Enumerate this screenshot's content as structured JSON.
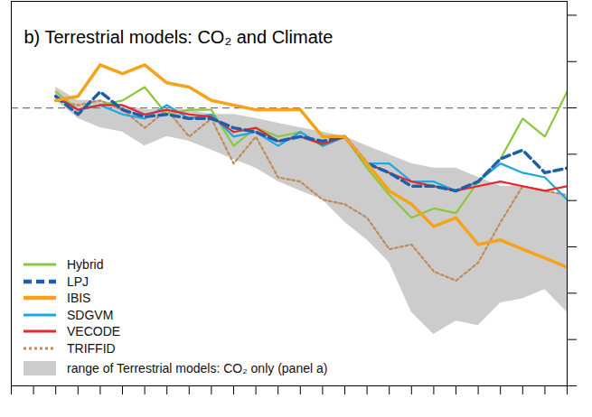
{
  "chart_data": {
    "type": "line",
    "title": "b) Terrestrial models: CO₂ and Climate",
    "x": [
      2,
      3,
      4,
      5,
      6,
      7,
      8,
      9,
      10,
      11,
      12,
      13,
      14,
      15,
      16,
      17,
      18,
      19,
      20,
      21,
      22,
      23,
      24,
      25
    ],
    "xlim": [
      0,
      25
    ],
    "xticks": [
      0,
      1,
      2,
      3,
      4,
      5,
      6,
      7,
      8,
      9,
      10,
      11,
      12,
      13,
      14,
      15,
      16,
      17,
      18,
      19,
      20,
      21,
      22,
      23,
      24,
      25
    ],
    "ylim": [
      -6,
      2.3
    ],
    "yticks": [
      -6,
      -5,
      -4,
      -3,
      -2,
      -1,
      0,
      1,
      2
    ],
    "tick_labels": false,
    "baseline": 0,
    "series": [
      {
        "name": "TRIFFID",
        "color": "#c08b5a",
        "line_style": "dotted",
        "values": [
          0.16,
          0.06,
          0.16,
          -0.04,
          -0.43,
          -0.04,
          -0.62,
          -0.23,
          -1.2,
          -0.62,
          -1.5,
          -1.59,
          -1.98,
          -2.08,
          -2.37,
          -3.05,
          -2.95,
          -3.53,
          -3.73,
          -3.34,
          -2.47,
          -1.69,
          -1.79,
          -1.88
        ]
      },
      {
        "name": "Hybrid",
        "color": "#8dc63f",
        "line_style": "solid",
        "values": [
          0.35,
          -0.04,
          0.06,
          0.16,
          0.45,
          -0.14,
          -0.04,
          -0.04,
          -0.82,
          -0.43,
          -0.62,
          -0.52,
          -0.82,
          -0.62,
          -1.3,
          -1.88,
          -2.37,
          -2.17,
          -2.27,
          -1.59,
          -1.1,
          -0.23,
          -0.62,
          0.35
        ]
      },
      {
        "name": "SDGVM",
        "color": "#1ea7e1",
        "line_style": "solid",
        "values": [
          0.25,
          -0.04,
          0.06,
          -0.14,
          -0.23,
          0.06,
          -0.23,
          -0.14,
          -0.62,
          -0.52,
          -0.82,
          -0.52,
          -0.82,
          -0.62,
          -1.2,
          -1.2,
          -1.59,
          -1.59,
          -1.79,
          -1.59,
          -1.2,
          -1.4,
          -1.5,
          -1.98
        ]
      },
      {
        "name": "VECODE",
        "color": "#e8262b",
        "line_style": "solid",
        "values": [
          0.25,
          -0.04,
          0.06,
          0.06,
          -0.14,
          -0.04,
          -0.14,
          -0.19,
          -0.52,
          -0.43,
          -0.72,
          -0.62,
          -0.78,
          -0.62,
          -1.2,
          -1.4,
          -1.59,
          -1.69,
          -1.79,
          -1.69,
          -1.59,
          -1.69,
          -1.79,
          -1.69
        ]
      },
      {
        "name": "LPJ",
        "color": "#1f5fa8",
        "line_style": "dashed",
        "values": [
          0.25,
          -0.14,
          0.35,
          -0.04,
          -0.19,
          -0.14,
          -0.23,
          -0.23,
          -0.43,
          -0.52,
          -0.72,
          -0.62,
          -0.72,
          -0.62,
          -1.2,
          -1.4,
          -1.69,
          -1.69,
          -1.79,
          -1.59,
          -1.1,
          -0.91,
          -1.4,
          -1.3
        ]
      },
      {
        "name": "IBIS",
        "color": "#f7a21b",
        "line_style": "solid",
        "values": [
          0.16,
          0.25,
          0.93,
          0.74,
          0.93,
          0.54,
          0.45,
          0.16,
          0.06,
          -0.04,
          -0.04,
          -0.04,
          -0.62,
          -0.62,
          -1.2,
          -1.79,
          -2.08,
          -2.56,
          -2.37,
          -2.95,
          -2.85,
          -3.05,
          -3.24,
          -3.44
        ]
      }
    ],
    "band": {
      "name": "range of Terrestrial models: CO₂ only (panel a)",
      "color": "#cccccc",
      "upper": [
        0.45,
        0.16,
        0.16,
        0.06,
        -0.04,
        -0.04,
        -0.04,
        -0.14,
        -0.14,
        -0.23,
        -0.33,
        -0.43,
        -0.52,
        -0.62,
        -0.82,
        -1.01,
        -1.2,
        -1.3,
        -1.3,
        -1.5,
        -1.69,
        -1.69,
        -1.79,
        -1.88
      ],
      "lower": [
        0.16,
        -0.23,
        -0.43,
        -0.52,
        -0.82,
        -0.62,
        -0.72,
        -0.91,
        -1.11,
        -1.3,
        -1.59,
        -1.79,
        -1.98,
        -2.47,
        -2.85,
        -3.34,
        -4.41,
        -4.89,
        -4.6,
        -4.7,
        -4.21,
        -4.12,
        -3.92,
        -4.41
      ]
    }
  }
}
